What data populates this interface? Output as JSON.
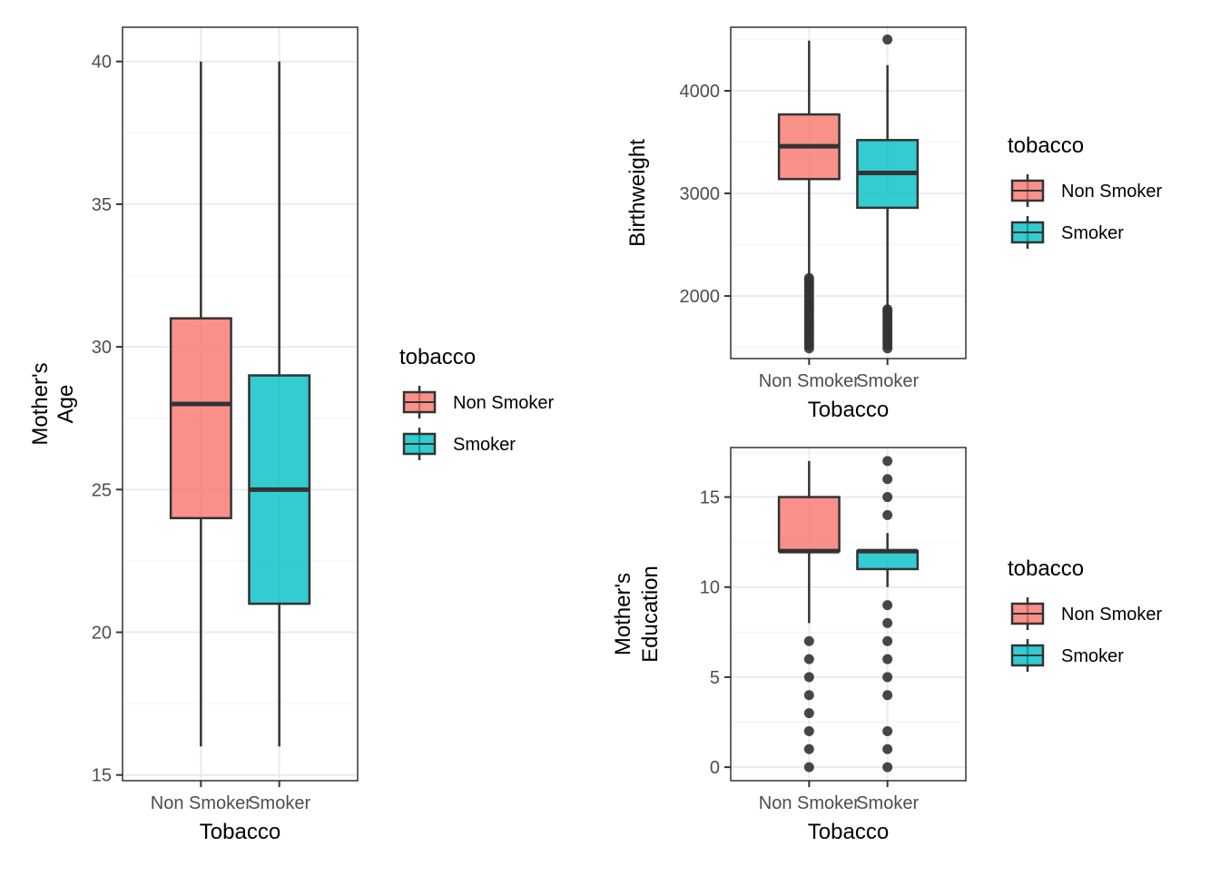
{
  "colors": {
    "non_smoker": "#F8766D",
    "smoker": "#00BFC4",
    "outline": "#333333",
    "panel_border": "#333333",
    "grid_major": "#EBEBEB",
    "grid_minor": "#F3F3F3"
  },
  "chart_data": [
    {
      "type": "boxplot",
      "id": "age",
      "xlabel": "Tobacco",
      "ylabel_lines": [
        "Mother's",
        "Age"
      ],
      "categories": [
        "Non Smoker",
        "Smoker"
      ],
      "ylim": [
        14.8,
        41.2
      ],
      "yticks": [
        15,
        20,
        25,
        30,
        35,
        40
      ],
      "ytick_labels": [
        "15",
        "20",
        "25",
        "30",
        "35",
        "40"
      ],
      "grid": true,
      "legend": {
        "title": "tobacco",
        "entries": [
          "Non Smoker",
          "Smoker"
        ],
        "placement": "right"
      },
      "boxes": [
        {
          "category": "Non Smoker",
          "min": 16,
          "q1": 24,
          "median": 28,
          "q3": 31,
          "max": 40,
          "outliers": []
        },
        {
          "category": "Smoker",
          "min": 16,
          "q1": 21,
          "median": 25,
          "q3": 29,
          "max": 40,
          "outliers": []
        }
      ]
    },
    {
      "type": "boxplot",
      "id": "birthweight",
      "xlabel": "Tobacco",
      "ylabel_lines": [
        "Birthweight"
      ],
      "categories": [
        "Non Smoker",
        "Smoker"
      ],
      "ylim": [
        1390,
        4620
      ],
      "yticks": [
        2000,
        3000,
        4000
      ],
      "ytick_labels": [
        "2000",
        "3000",
        "4000"
      ],
      "grid": true,
      "legend": {
        "title": "tobacco",
        "entries": [
          "Non Smoker",
          "Smoker"
        ],
        "placement": "right"
      },
      "boxes": [
        {
          "category": "Non Smoker",
          "min": 2180,
          "q1": 3140,
          "median": 3460,
          "q3": 3770,
          "max": 4490,
          "outliers": [
            1490,
            1520,
            1550,
            1580,
            1610,
            1640,
            1670,
            1700,
            1730,
            1760,
            1790,
            1820,
            1850,
            1880,
            1910,
            1940,
            1970,
            2000,
            2030,
            2060,
            2090,
            2120,
            2150,
            2175
          ]
        },
        {
          "category": "Smoker",
          "min": 1880,
          "q1": 2860,
          "median": 3200,
          "q3": 3520,
          "max": 4250,
          "outliers": [
            1490,
            1520,
            1550,
            1580,
            1610,
            1640,
            1670,
            1700,
            1730,
            1760,
            1790,
            1820,
            1850,
            1870,
            4500
          ]
        }
      ]
    },
    {
      "type": "boxplot",
      "id": "education",
      "xlabel": "Tobacco",
      "ylabel_lines": [
        "Mother's",
        "Education"
      ],
      "categories": [
        "Non Smoker",
        "Smoker"
      ],
      "ylim": [
        -0.75,
        17.75
      ],
      "yticks": [
        0,
        5,
        10,
        15
      ],
      "ytick_labels": [
        "0",
        "5",
        "10",
        "15"
      ],
      "grid": true,
      "legend": {
        "title": "tobacco",
        "entries": [
          "Non Smoker",
          "Smoker"
        ],
        "placement": "right"
      },
      "boxes": [
        {
          "category": "Non Smoker",
          "min": 8,
          "q1": 12,
          "median": 12,
          "q3": 15,
          "max": 17,
          "outliers": [
            0,
            1,
            2,
            3,
            4,
            5,
            6,
            7
          ]
        },
        {
          "category": "Smoker",
          "min": 10,
          "q1": 11,
          "median": 12,
          "q3": 12,
          "max": 13,
          "outliers": [
            0,
            1,
            2,
            4,
            5,
            6,
            7,
            8,
            9,
            14,
            15,
            16,
            17
          ]
        }
      ]
    }
  ]
}
